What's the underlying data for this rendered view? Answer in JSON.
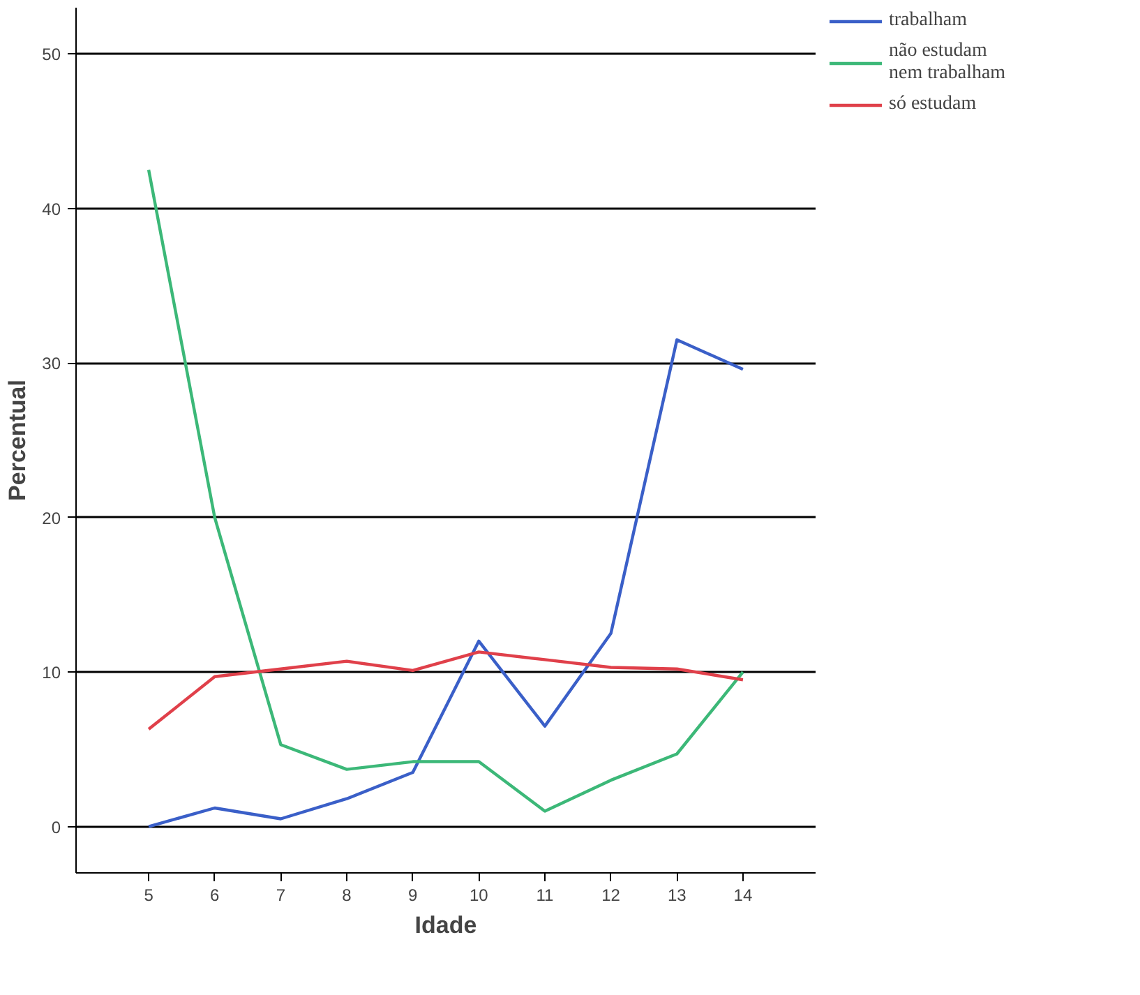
{
  "chart_data": {
    "type": "line",
    "xlabel": "Idade",
    "ylabel": "Percentual",
    "x": [
      5,
      6,
      7,
      8,
      9,
      10,
      11,
      12,
      13,
      14
    ],
    "series": [
      {
        "name": "trabalham",
        "color": "#3a5fc8",
        "values": [
          0,
          1.2,
          0.5,
          1.8,
          3.5,
          12,
          6.5,
          12.5,
          31.5,
          29.6
        ]
      },
      {
        "name": "não estudam\nnem trabalham",
        "color": "#3cb878",
        "values": [
          42.5,
          20,
          5.3,
          3.7,
          4.2,
          4.2,
          1.0,
          3.0,
          4.7,
          10
        ]
      },
      {
        "name": "só estudam",
        "color": "#e0404a",
        "values": [
          6.3,
          9.7,
          10.2,
          10.7,
          10.1,
          11.3,
          10.8,
          10.3,
          10.2,
          9.5
        ]
      }
    ],
    "xlim": [
      3.9,
      15.1
    ],
    "ylim": [
      -3,
      53
    ],
    "xticks": [
      5,
      6,
      7,
      8,
      9,
      10,
      11,
      12,
      13,
      14
    ],
    "yticks": [
      0,
      10,
      20,
      30,
      40,
      50
    ],
    "grid": "y",
    "legend": "top right",
    "marker": "none",
    "line_style": "solid"
  }
}
